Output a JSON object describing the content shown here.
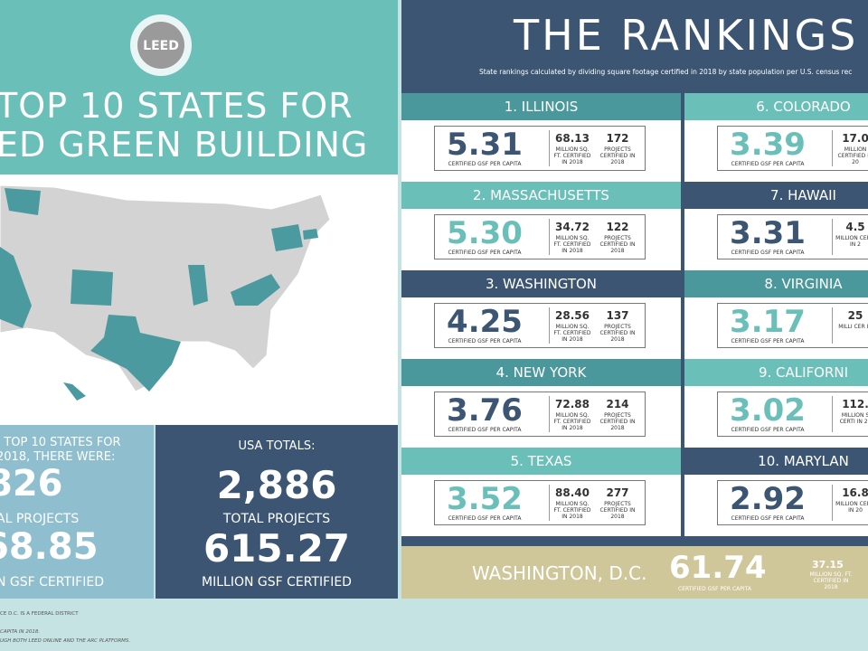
{
  "header": {
    "logo": "LEED",
    "title_line1": "TOP 10 STATES FOR",
    "title_line2": "ED GREEN BUILDING"
  },
  "top10_totals": {
    "intro_line1": "E TOP 10 STATES FOR",
    "intro_line2": "2018, THERE WERE:",
    "projects": "826",
    "projects_label": "AL PROJECTS",
    "gsf": "68.85",
    "gsf_label": "N GSF CERTIFIED"
  },
  "usa_totals": {
    "heading": "USA TOTALS:",
    "projects": "2,886",
    "projects_label": "TOTAL PROJECTS",
    "gsf": "615.27",
    "gsf_label": "MILLION GSF CERTIFIED"
  },
  "rankings": {
    "title": "THE RANKINGS",
    "subtitle": "State rankings calculated by dividing square footage certified in 2018 by state population per U.S. census rec",
    "items": [
      {
        "title": "1. ILLINOIS",
        "gsf": "5.31",
        "gsf_label": "CERTIFIED GSF PER CAPITA",
        "sqft": "68.13",
        "sqft_label": "MILLION SQ. FT. CERTIFIED IN 2018",
        "projects": "172",
        "projects_label": "PROJECTS CERTIFIED IN 2018",
        "header_color": "#4a979c",
        "number_color": "#3b5573"
      },
      {
        "title": "2. MASSACHUSETTS",
        "gsf": "5.30",
        "gsf_label": "CERTIFIED GSF PER CAPITA",
        "sqft": "34.72",
        "sqft_label": "MILLION SQ. FT. CERTIFIED IN 2018",
        "projects": "122",
        "projects_label": "PROJECTS CERTIFIED IN 2018",
        "header_color": "#6bbfb9",
        "number_color": "#6bbfb9"
      },
      {
        "title": "3. WASHINGTON",
        "gsf": "4.25",
        "gsf_label": "CERTIFIED GSF PER CAPITA",
        "sqft": "28.56",
        "sqft_label": "MILLION SQ. FT. CERTIFIED IN 2018",
        "projects": "137",
        "projects_label": "PROJECTS CERTIFIED IN 2018",
        "header_color": "#3b5573",
        "number_color": "#3b5573"
      },
      {
        "title": "4. NEW YORK",
        "gsf": "3.76",
        "gsf_label": "CERTIFIED GSF PER CAPITA",
        "sqft": "72.88",
        "sqft_label": "MILLION SQ. FT. CERTIFIED IN 2018",
        "projects": "214",
        "projects_label": "PROJECTS CERTIFIED IN 2018",
        "header_color": "#4a979c",
        "number_color": "#3b5573"
      },
      {
        "title": "5. TEXAS",
        "gsf": "3.52",
        "gsf_label": "CERTIFIED GSF PER CAPITA",
        "sqft": "88.40",
        "sqft_label": "MILLION SQ. FT. CERTIFIED IN 2018",
        "projects": "277",
        "projects_label": "PROJECTS CERTIFIED IN 2018",
        "header_color": "#6bbfb9",
        "number_color": "#6bbfb9"
      },
      {
        "title": "6. COLORADO",
        "gsf": "3.39",
        "gsf_label": "CERTIFIED GSF PER CAPITA",
        "sqft": "17.0",
        "sqft_label": "MILLION CERTIFIED IN 20",
        "header_color": "#6bbfb9",
        "number_color": "#6bbfb9"
      },
      {
        "title": "7. HAWAII",
        "gsf": "3.31",
        "gsf_label": "CERTIFIED GSF PER CAPITA",
        "sqft": "4.5",
        "sqft_label": "MILLION CERTI IN 2",
        "header_color": "#3b5573",
        "number_color": "#3b5573"
      },
      {
        "title": "8. VIRGINIA",
        "gsf": "3.17",
        "gsf_label": "CERTIFIED GSF PER CAPITA",
        "sqft": "25",
        "sqft_label": "MILLI CER IN",
        "header_color": "#4a979c",
        "number_color": "#6bbfb9"
      },
      {
        "title": "9. CALIFORNI",
        "gsf": "3.02",
        "gsf_label": "CERTIFIED GSF PER CAPITA",
        "sqft": "112.",
        "sqft_label": "MILLION S CERTI IN 20",
        "header_color": "#6bbfb9",
        "number_color": "#6bbfb9"
      },
      {
        "title": "10. MARYLAN",
        "gsf": "2.92",
        "gsf_label": "CERTIFIED GSF PER CAPITA",
        "sqft": "16.8",
        "sqft_label": "MILLION CERTI IN 20",
        "header_color": "#3b5573",
        "number_color": "#3b5573"
      }
    ]
  },
  "dc": {
    "title": "WASHINGTON, D.C.",
    "gsf": "61.74",
    "gsf_label": "CERTIFIED GSF PER CAPITA",
    "sqft": "37.15",
    "sqft_label": "MILLION SQ. FT. CERTIFIED IN 2018"
  },
  "footnotes": [
    "CE D.C. IS A FEDERAL DISTRICT",
    "CAPITA IN 2018.",
    "UGH BOTH LEED ONLINE AND THE ARC PLATFORMS."
  ]
}
